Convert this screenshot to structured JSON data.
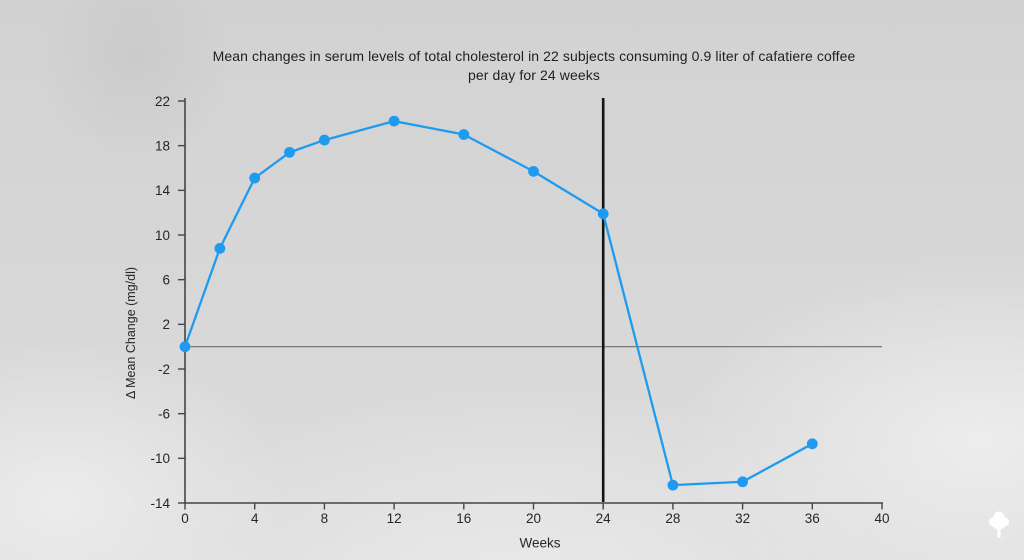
{
  "chart_data": {
    "type": "line",
    "title": "Mean changes in serum levels of total cholesterol in 22 subjects consuming 0.9 liter of cafatiere coffee per day for 24 weeks",
    "title_lines": [
      "Mean changes in serum levels of total cholesterol in 22 subjects consuming 0.9 liter of cafatiere coffee",
      "per day for 24 weeks"
    ],
    "xlabel": "Weeks",
    "ylabel": "Δ Mean Change (mg/dl)",
    "x": [
      0,
      2,
      4,
      6,
      8,
      12,
      16,
      20,
      24,
      28,
      32,
      36
    ],
    "y": [
      0,
      8.8,
      15.1,
      17.4,
      18.5,
      20.2,
      19.0,
      15.7,
      11.9,
      -12.4,
      -12.1,
      -8.7
    ],
    "xlim": [
      0,
      40
    ],
    "ylim": [
      -14,
      22
    ],
    "xticks": [
      0,
      4,
      8,
      12,
      16,
      20,
      24,
      28,
      32,
      36,
      40
    ],
    "yticks": [
      22,
      18,
      14,
      10,
      6,
      2,
      -2,
      -6,
      -10,
      -14
    ],
    "grid": false,
    "legend": null,
    "zero_line": true,
    "annotations": [
      {
        "type": "vline",
        "x": 24
      }
    ],
    "colors": {
      "line": "#1e9bf0",
      "marker": "#1e9bf0",
      "axis": "#454545",
      "zero_line": "#6e6e6e",
      "vline": "#131313",
      "text": "#262626"
    }
  },
  "watermark": {
    "icon": "tree-logo-icon",
    "color": "#ffffff"
  }
}
